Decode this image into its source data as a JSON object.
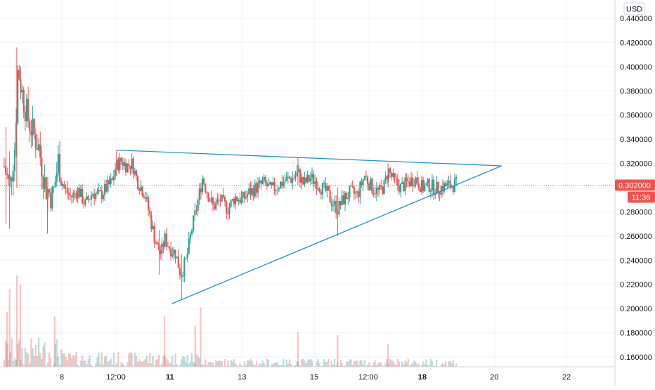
{
  "chart_data": {
    "type": "candlestick",
    "currency": "USD",
    "ylim": [
      0.15,
      0.445
    ],
    "y_ticks": [
      0.44,
      0.42,
      0.4,
      0.38,
      0.36,
      0.34,
      0.32,
      0.3,
      0.28,
      0.26,
      0.24,
      0.22,
      0.2,
      0.18,
      0.16
    ],
    "y_tick_labels": [
      "0.440000",
      "0.420000",
      "0.400000",
      "0.380000",
      "0.360000",
      "0.340000",
      "0.320000",
      "0.300000",
      "0.280000",
      "0.260000",
      "0.240000",
      "0.220000",
      "0.200000",
      "0.180000",
      "0.160000"
    ],
    "x_ticks": [
      {
        "label": "8",
        "day": 8.0,
        "bold": false
      },
      {
        "label": "12:00",
        "day": 9.5,
        "bold": false
      },
      {
        "label": "11",
        "day": 11.0,
        "bold": true
      },
      {
        "label": "13",
        "day": 13.0,
        "bold": false
      },
      {
        "label": "15",
        "day": 15.0,
        "bold": false
      },
      {
        "label": "12:00",
        "day": 16.5,
        "bold": false
      },
      {
        "label": "18",
        "day": 18.0,
        "bold": true
      },
      {
        "label": "20",
        "day": 20.0,
        "bold": false
      },
      {
        "label": "22",
        "day": 22.0,
        "bold": false
      }
    ],
    "x_range_days": [
      6.4,
      23.0
    ],
    "last_price": 0.302,
    "last_price_label": "0.302000",
    "countdown_label": "11:36",
    "colors": {
      "up": "#26a69a",
      "down": "#ef5350",
      "line": "#2196c8",
      "price_line": "#ef5350"
    },
    "close_path": [
      [
        6.4,
        0.318
      ],
      [
        6.55,
        0.3
      ],
      [
        6.7,
        0.335
      ],
      [
        6.78,
        0.4
      ],
      [
        6.9,
        0.378
      ],
      [
        7.05,
        0.358
      ],
      [
        7.2,
        0.345
      ],
      [
        7.35,
        0.335
      ],
      [
        7.55,
        0.3
      ],
      [
        7.75,
        0.292
      ],
      [
        7.9,
        0.322
      ],
      [
        8.05,
        0.3
      ],
      [
        8.25,
        0.292
      ],
      [
        8.45,
        0.298
      ],
      [
        8.65,
        0.286
      ],
      [
        8.85,
        0.296
      ],
      [
        9.05,
        0.293
      ],
      [
        9.25,
        0.3
      ],
      [
        9.4,
        0.305
      ],
      [
        9.5,
        0.318
      ],
      [
        9.65,
        0.322
      ],
      [
        9.8,
        0.318
      ],
      [
        9.95,
        0.32
      ],
      [
        10.1,
        0.305
      ],
      [
        10.3,
        0.295
      ],
      [
        10.45,
        0.275
      ],
      [
        10.6,
        0.255
      ],
      [
        10.75,
        0.245
      ],
      [
        10.85,
        0.258
      ],
      [
        11.0,
        0.25
      ],
      [
        11.15,
        0.246
      ],
      [
        11.3,
        0.228
      ],
      [
        11.45,
        0.24
      ],
      [
        11.6,
        0.265
      ],
      [
        11.75,
        0.285
      ],
      [
        11.9,
        0.308
      ],
      [
        12.05,
        0.295
      ],
      [
        12.2,
        0.284
      ],
      [
        12.4,
        0.29
      ],
      [
        12.6,
        0.282
      ],
      [
        12.8,
        0.292
      ],
      [
        13.0,
        0.29
      ],
      [
        13.2,
        0.296
      ],
      [
        13.4,
        0.3
      ],
      [
        13.6,
        0.304
      ],
      [
        13.8,
        0.298
      ],
      [
        14.0,
        0.302
      ],
      [
        14.2,
        0.306
      ],
      [
        14.4,
        0.308
      ],
      [
        14.55,
        0.312
      ],
      [
        14.7,
        0.303
      ],
      [
        14.9,
        0.308
      ],
      [
        15.05,
        0.305
      ],
      [
        15.2,
        0.3
      ],
      [
        15.35,
        0.296
      ],
      [
        15.5,
        0.288
      ],
      [
        15.65,
        0.282
      ],
      [
        15.8,
        0.29
      ],
      [
        16.0,
        0.296
      ],
      [
        16.2,
        0.294
      ],
      [
        16.4,
        0.31
      ],
      [
        16.6,
        0.3
      ],
      [
        16.8,
        0.296
      ],
      [
        16.95,
        0.302
      ],
      [
        17.05,
        0.315
      ],
      [
        17.2,
        0.306
      ],
      [
        17.4,
        0.3
      ],
      [
        17.6,
        0.304
      ],
      [
        17.8,
        0.308
      ],
      [
        18.0,
        0.3
      ],
      [
        18.2,
        0.302
      ],
      [
        18.4,
        0.299
      ],
      [
        18.6,
        0.301
      ],
      [
        18.8,
        0.302
      ],
      [
        18.95,
        0.303
      ]
    ],
    "spikes": [
      {
        "day": 6.75,
        "high": 0.416,
        "low": 0.3
      },
      {
        "day": 6.55,
        "high": 0.33,
        "low": 0.266
      },
      {
        "day": 6.45,
        "high": 0.35,
        "low": 0.27
      },
      {
        "day": 7.6,
        "high": 0.3,
        "low": 0.262
      },
      {
        "day": 10.7,
        "high": 0.265,
        "low": 0.228
      },
      {
        "day": 11.32,
        "high": 0.245,
        "low": 0.208
      },
      {
        "day": 9.52,
        "high": 0.331,
        "low": 0.31
      },
      {
        "day": 14.55,
        "high": 0.325,
        "low": 0.302
      },
      {
        "day": 15.65,
        "high": 0.3,
        "low": 0.26
      },
      {
        "day": 17.05,
        "high": 0.32,
        "low": 0.3
      }
    ],
    "volume_spikes": [
      {
        "day": 6.75,
        "v": 1.0
      },
      {
        "day": 6.55,
        "v": 0.85
      },
      {
        "day": 6.85,
        "v": 0.9
      },
      {
        "day": 6.48,
        "v": 0.6
      },
      {
        "day": 7.8,
        "v": 0.55
      },
      {
        "day": 10.85,
        "v": 0.55
      },
      {
        "day": 11.85,
        "v": 0.65
      },
      {
        "day": 11.7,
        "v": 0.45
      },
      {
        "day": 14.55,
        "v": 0.38
      },
      {
        "day": 15.65,
        "v": 0.35
      },
      {
        "day": 17.05,
        "v": 0.25
      }
    ],
    "trendlines": [
      {
        "name": "upper",
        "from": [
          9.52,
          0.331
        ],
        "to": [
          20.2,
          0.318
        ]
      },
      {
        "name": "lower",
        "from": [
          11.05,
          0.204
        ],
        "to": [
          20.2,
          0.318
        ]
      }
    ]
  }
}
